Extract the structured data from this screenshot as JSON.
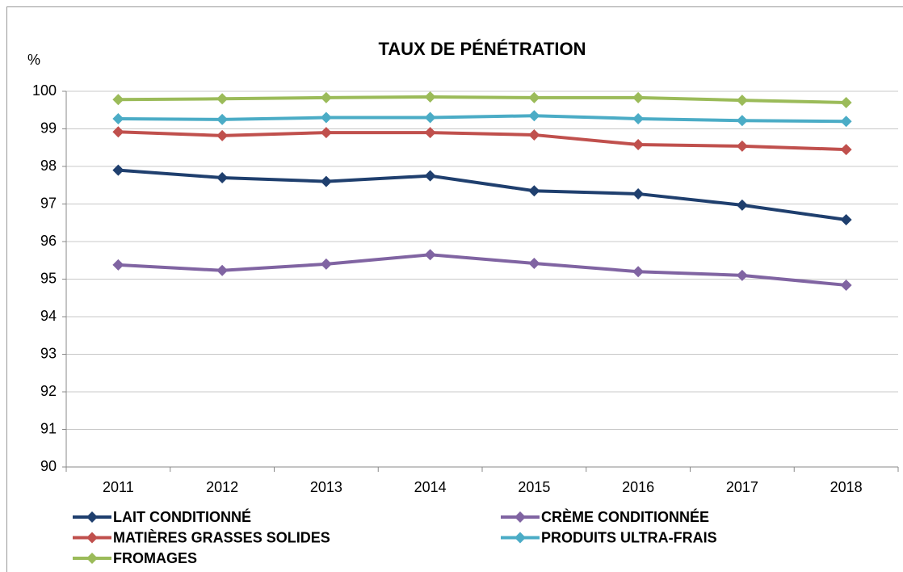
{
  "chart_data": {
    "type": "line",
    "title": "TAUX DE PÉNÉTRATION",
    "y_label": "%",
    "categories": [
      "2011",
      "2012",
      "2013",
      "2014",
      "2015",
      "2016",
      "2017",
      "2018"
    ],
    "series": [
      {
        "name": "LAIT CONDITIONNÉ",
        "color": "#1f3f6e",
        "values": [
          97.9,
          97.7,
          97.6,
          97.75,
          97.35,
          97.27,
          96.97,
          96.58
        ]
      },
      {
        "name": "CRÈME CONDITIONNÉE",
        "color": "#8064a2",
        "values": [
          95.38,
          95.23,
          95.4,
          95.65,
          95.42,
          95.2,
          95.1,
          94.84
        ]
      },
      {
        "name": "MATIÈRES GRASSES SOLIDES",
        "color": "#c0504d",
        "values": [
          98.92,
          98.82,
          98.9,
          98.9,
          98.84,
          98.58,
          98.54,
          98.45
        ]
      },
      {
        "name": "PRODUITS ULTRA-FRAIS",
        "color": "#4bacc6",
        "values": [
          99.27,
          99.25,
          99.3,
          99.3,
          99.35,
          99.27,
          99.22,
          99.2
        ]
      },
      {
        "name": "FROMAGES",
        "color": "#9bbb59",
        "values": [
          99.78,
          99.8,
          99.83,
          99.85,
          99.83,
          99.83,
          99.76,
          99.7
        ]
      }
    ],
    "ylim": [
      90,
      100
    ],
    "yticks": [
      90,
      91,
      92,
      93,
      94,
      95,
      96,
      97,
      98,
      99,
      100
    ],
    "grid": true,
    "legend": "bottom"
  }
}
